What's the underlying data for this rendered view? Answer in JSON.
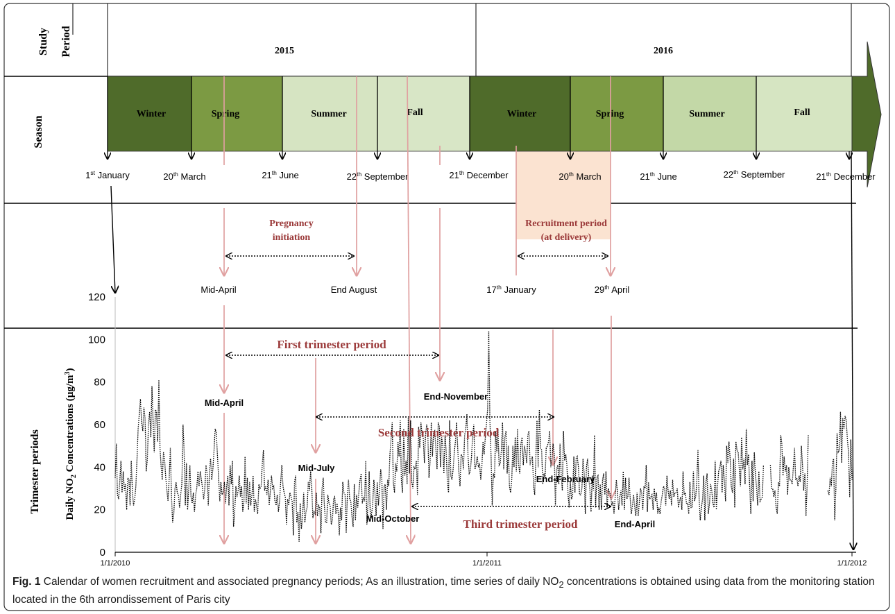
{
  "row_labels": {
    "study": "Study",
    "period": "Period",
    "season": "Season",
    "trimester_periods": "Trimester periods"
  },
  "years": [
    "2015",
    "2016"
  ],
  "seasons": [
    {
      "label": "Winter",
      "color": "#4f6b2a"
    },
    {
      "label": "Spring",
      "color": "#7c9a43"
    },
    {
      "label": "Summer",
      "color": "#d6e4c2"
    },
    {
      "label": "Fall",
      "color": "#d8e6c6"
    },
    {
      "label": "Winter",
      "color": "#4f6b2a"
    },
    {
      "label": "Spring",
      "color": "#7c9a43"
    },
    {
      "label": "Summer",
      "color": "#c3d8a7"
    },
    {
      "label": "Fall",
      "color": "#d6e5c2"
    }
  ],
  "season_dates": [
    {
      "base": "1",
      "sup": "st",
      "rest": " January"
    },
    {
      "base": "20",
      "sup": "th",
      "rest": " March"
    },
    {
      "base": "21",
      "sup": "th",
      "rest": " June"
    },
    {
      "base": "22",
      "sup": "th",
      "rest": " September"
    },
    {
      "base": "21",
      "sup": "th",
      "rest": " December"
    },
    {
      "base": "20",
      "sup": "th",
      "rest": " March"
    },
    {
      "base": "21",
      "sup": "th",
      "rest": " June"
    },
    {
      "base": "22",
      "sup": "th",
      "rest": " September"
    },
    {
      "base": "21",
      "sup": "th",
      "rest": " December"
    }
  ],
  "pregnancy_initiation": {
    "title_line1": "Pregnancy",
    "title_line2": "initiation",
    "start": "Mid-April",
    "end": "End August"
  },
  "recruitment": {
    "title_line1": "Recruitment period",
    "title_line2": "(at delivery)",
    "start": {
      "base": "17",
      "sup": "th",
      "rest": " January"
    },
    "end": {
      "base": "29",
      "sup": "th",
      "rest": " April"
    },
    "color": "#fbe3d1"
  },
  "trimesters": {
    "first": {
      "title": "First trimester period",
      "start": "Mid-April",
      "end": "End-November"
    },
    "second": {
      "title": "Second trimester period",
      "start": "Mid-July",
      "end": "End-February"
    },
    "third": {
      "title": "Third trimester period",
      "start": "Mid-October",
      "end": "End-April"
    }
  },
  "accent_color": "#9b3a3a",
  "guide_color": "#e0a0a0",
  "chart_data": {
    "type": "line",
    "ylabel": "Daily NO2 Concentrations (µg/m3)",
    "ylabel_prefix": "Daily NO",
    "ylabel_sub": "2",
    "ylabel_middle": " Concentrations (µg/m",
    "ylabel_sup": "3",
    "ylabel_suffix": ")",
    "ylim": [
      0,
      120
    ],
    "yticks": [
      0,
      20,
      40,
      60,
      80,
      100,
      120
    ],
    "xticks": [
      "1/1/2010",
      "1/1/2011",
      "1/1/2012"
    ],
    "gaps_days": [
      [
        565,
        569
      ],
      [
        604,
        619
      ]
    ],
    "series": [
      {
        "values": [
          35,
          51,
          27,
          25,
          33,
          43,
          28,
          38,
          29,
          32,
          20,
          35,
          34,
          22,
          43,
          28,
          22,
          25,
          31,
          44,
          58,
          65,
          72,
          61,
          57,
          68,
          63,
          38,
          44,
          60,
          66,
          54,
          78,
          61,
          47,
          67,
          66,
          52,
          81,
          49,
          40,
          34,
          47,
          44,
          35,
          29,
          24,
          35,
          49,
          26,
          14,
          18,
          30,
          33,
          28,
          27,
          21,
          27,
          32,
          60,
          47,
          22,
          42,
          20,
          30,
          41,
          26,
          23,
          28,
          19,
          27,
          30,
          38,
          31,
          38,
          34,
          30,
          25,
          30,
          41,
          37,
          22,
          38,
          44,
          34,
          39,
          48,
          58,
          56,
          45,
          35,
          24,
          33,
          27,
          28,
          33,
          23,
          31,
          36,
          22,
          41,
          32,
          43,
          12,
          19,
          31,
          26,
          29,
          36,
          26,
          31,
          19,
          24,
          45,
          23,
          35,
          20,
          33,
          22,
          27,
          36,
          19,
          25,
          22,
          18,
          32,
          30,
          31,
          42,
          48,
          29,
          31,
          27,
          34,
          22,
          29,
          36,
          30,
          31,
          24,
          22,
          27,
          19,
          24,
          33,
          41,
          31,
          28,
          26,
          13,
          25,
          22,
          28,
          26,
          24,
          8,
          33,
          36,
          14,
          19,
          5,
          23,
          11,
          16,
          28,
          14,
          19,
          21,
          33,
          29,
          38,
          31,
          16,
          19,
          18,
          28,
          17,
          22,
          21,
          9,
          30,
          35,
          22,
          14,
          14,
          27,
          23,
          22,
          13,
          15,
          25,
          26,
          18,
          23,
          19,
          8,
          21,
          15,
          33,
          28,
          27,
          9,
          27,
          34,
          25,
          24,
          17,
          12,
          32,
          15,
          27,
          21,
          28,
          34,
          37,
          23,
          26,
          24,
          43,
          13,
          24,
          38,
          16,
          18,
          22,
          34,
          28,
          17,
          33,
          22,
          30,
          39,
          34,
          11,
          31,
          32,
          20,
          34,
          31,
          46,
          53,
          61,
          33,
          28,
          42,
          38,
          52,
          45,
          62,
          34,
          28,
          58,
          36,
          43,
          32,
          63,
          37,
          62,
          33,
          30,
          40,
          39,
          43,
          27,
          59,
          49,
          61,
          55,
          54,
          42,
          55,
          60,
          56,
          35,
          43,
          61,
          45,
          56,
          57,
          49,
          39,
          61,
          59,
          40,
          54,
          50,
          37,
          55,
          47,
          33,
          28,
          62,
          36,
          34,
          39,
          47,
          52,
          61,
          49,
          38,
          31,
          46,
          45,
          39,
          55,
          58,
          65,
          45,
          37,
          38,
          45,
          55,
          60,
          39,
          41,
          45,
          40,
          42,
          34,
          40,
          52,
          46,
          54,
          60,
          67,
          104,
          62,
          45,
          22,
          37,
          35,
          57,
          47,
          58,
          41,
          42,
          48,
          61,
          39,
          54,
          57,
          37,
          50,
          31,
          28,
          34,
          50,
          40,
          54,
          38,
          58,
          41,
          37,
          51,
          54,
          41,
          50,
          47,
          42,
          55,
          57,
          41,
          44,
          45,
          31,
          27,
          45,
          62,
          40,
          67,
          49,
          48,
          32,
          37,
          35,
          49,
          50,
          52,
          57,
          40,
          44,
          51,
          46,
          22,
          39,
          41,
          32,
          51,
          37,
          29,
          57,
          43,
          46,
          41,
          27,
          21,
          33,
          25,
          27,
          45,
          28,
          44,
          45,
          40,
          27,
          27,
          30,
          44,
          37,
          18,
          40,
          44,
          35,
          29,
          19,
          36,
          29,
          55,
          21,
          35,
          36,
          20,
          32,
          20,
          34,
          37,
          27,
          38,
          21,
          30,
          28,
          27,
          22,
          24,
          18,
          26,
          34,
          28,
          20,
          26,
          29,
          22,
          38,
          20,
          35,
          25,
          26,
          35,
          26,
          18,
          22,
          27,
          21,
          17,
          28,
          17,
          23,
          30,
          28,
          20,
          31,
          30,
          41,
          19,
          33,
          25,
          26,
          27,
          20,
          30,
          24,
          28,
          18,
          21,
          18,
          24,
          27,
          31,
          30,
          22,
          36,
          29,
          25,
          29,
          22,
          34,
          26,
          28,
          28,
          30,
          21,
          24,
          26,
          20,
          38,
          27,
          28,
          23,
          23,
          18,
          33,
          21,
          21,
          38,
          24,
          26,
          33,
          48,
          26,
          15,
          21,
          25,
          36,
          15,
          33,
          37,
          18,
          23,
          32,
          29,
          23,
          21,
          43,
          20,
          31,
          38,
          40,
          43,
          28,
          41,
          33,
          24,
          50,
          42,
          52,
          44,
          31,
          28,
          44,
          21,
          52,
          48,
          47,
          39,
          31,
          54,
          39,
          44,
          32,
          58,
          41,
          46,
          31,
          18,
          43,
          24,
          47,
          37,
          30,
          22,
          38,
          24,
          25,
          26,
          41,
          20,
          80,
          23,
          31,
          35,
          41,
          30,
          30,
          26,
          29,
          21,
          18,
          33,
          31,
          55,
          51,
          36,
          45,
          38,
          41,
          27,
          40,
          34,
          34,
          32,
          40,
          49,
          34,
          35,
          31,
          36,
          33,
          50,
          40,
          29,
          37,
          17,
          32,
          55,
          31,
          35,
          40,
          15,
          34,
          19,
          21,
          30,
          40,
          32,
          25,
          22,
          30,
          27,
          12,
          43,
          29,
          27,
          35,
          31,
          42,
          44,
          15,
          30,
          56,
          47,
          48,
          66,
          42,
          63,
          58,
          64,
          62,
          53,
          47,
          26,
          53,
          34
        ]
      }
    ]
  },
  "caption": {
    "label": "Fig. 1",
    "text": " Calendar of women recruitment and associated pregnancy periods; As an illustration, time series of daily NO",
    "sub": "2",
    "text2": " concentrations is obtained using data from the monitoring station located in the 6th arrondissement of Paris city"
  }
}
